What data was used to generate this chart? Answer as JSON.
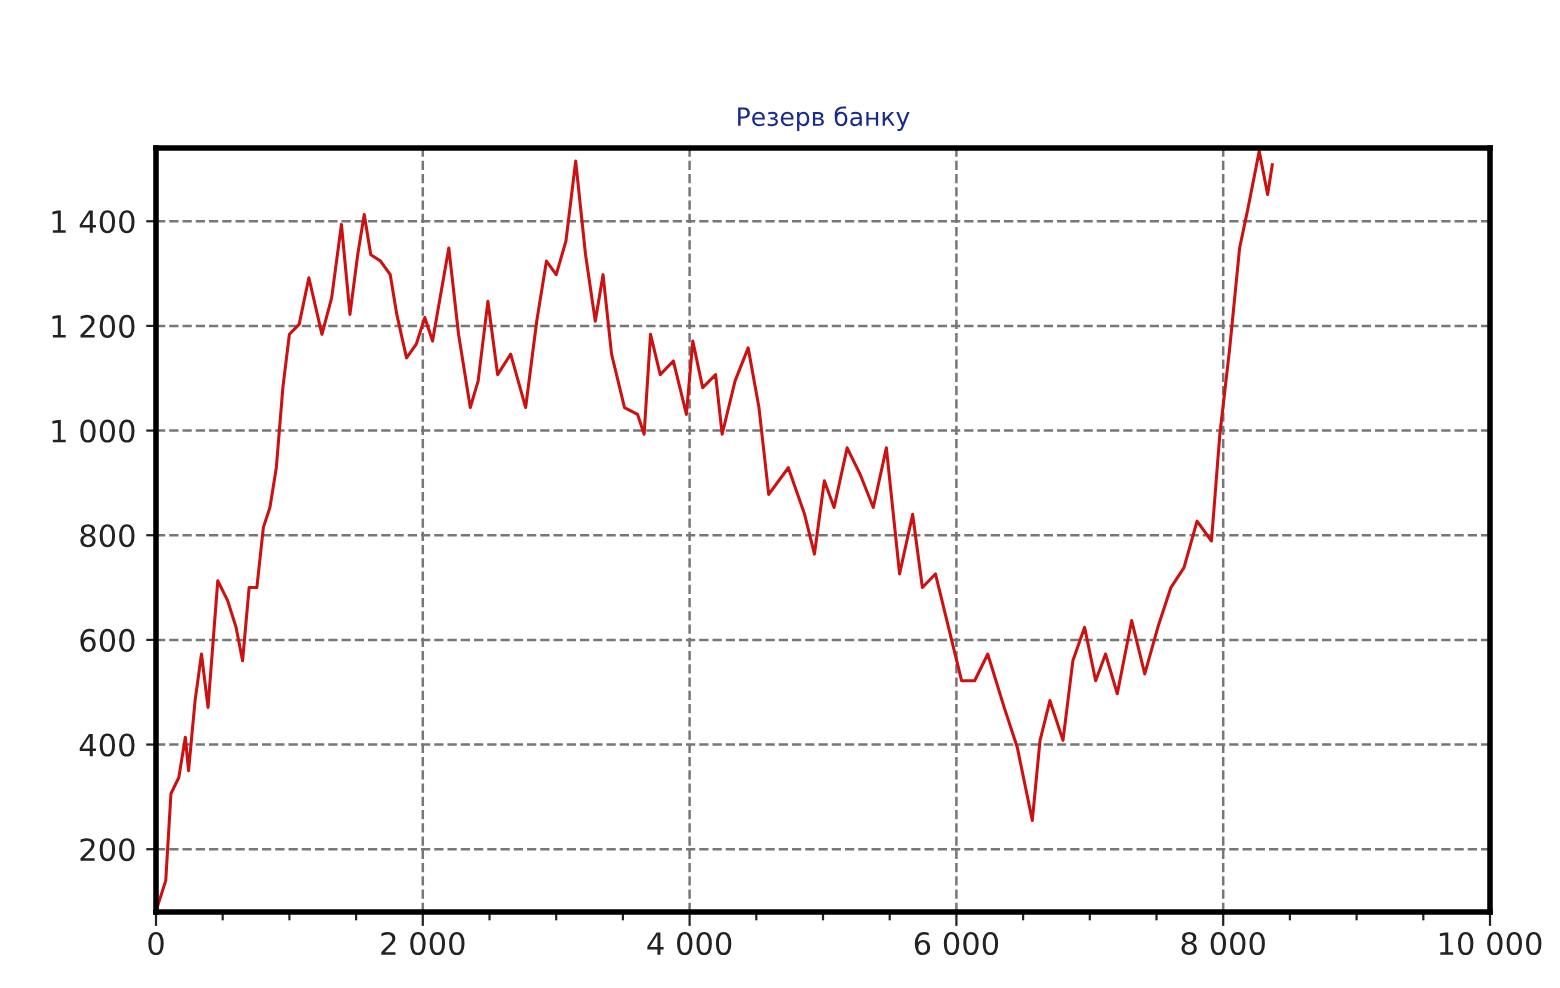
{
  "chart_data": {
    "type": "line",
    "title": "Резерв банку",
    "x": [
      10,
      73,
      112,
      171,
      220,
      244,
      293,
      341,
      390,
      463,
      537,
      600,
      649,
      698,
      756,
      805,
      854,
      902,
      951,
      1000,
      1073,
      1146,
      1244,
      1317,
      1390,
      1454,
      1512,
      1561,
      1610,
      1683,
      1756,
      1805,
      1878,
      1951,
      2015,
      2073,
      2195,
      2268,
      2356,
      2415,
      2488,
      2561,
      2659,
      2771,
      2854,
      2927,
      3000,
      3073,
      3146,
      3220,
      3293,
      3351,
      3415,
      3512,
      3610,
      3659,
      3707,
      3780,
      3878,
      3976,
      4024,
      4098,
      4195,
      4244,
      4341,
      4439,
      4520,
      4593,
      4740,
      4862,
      4936,
      5010,
      5083,
      5181,
      5279,
      5377,
      5475,
      5574,
      5672,
      5745,
      5843,
      5941,
      6039,
      6137,
      6235,
      6358,
      6456,
      6569,
      6627,
      6701,
      6799,
      6873,
      6961,
      7044,
      7118,
      7206,
      7314,
      7412,
      7510,
      7608,
      7706,
      7804,
      7912,
      7975,
      8049,
      8123,
      8186,
      8270,
      8333,
      8368
    ],
    "series": [
      {
        "color": "#cc1111",
        "values": [
          90,
          140,
          306,
          337,
          414,
          350,
          484,
          573,
          471,
          713,
          675,
          624,
          560,
          700,
          700,
          815,
          853,
          929,
          1082,
          1184,
          1203,
          1292,
          1184,
          1254,
          1394,
          1222,
          1336,
          1413,
          1336,
          1324,
          1298,
          1222,
          1139,
          1165,
          1216,
          1171,
          1349,
          1184,
          1044,
          1095,
          1247,
          1107,
          1146,
          1044,
          1209,
          1324,
          1298,
          1362,
          1515,
          1336,
          1209,
          1298,
          1146,
          1044,
          1031,
          993,
          1184,
          1107,
          1133,
          1031,
          1171,
          1082,
          1107,
          993,
          1095,
          1158,
          1044,
          878,
          929,
          840,
          764,
          904,
          853,
          967,
          916,
          853,
          967,
          726,
          840,
          700,
          726,
          624,
          522,
          522,
          573,
          471,
          395,
          255,
          408,
          484,
          408,
          560,
          624,
          522,
          573,
          497,
          637,
          535,
          624,
          700,
          738,
          827,
          789,
          993,
          1158,
          1349,
          1425,
          1534,
          1451,
          1508
        ]
      }
    ],
    "xlim": [
      0,
      10000
    ],
    "ylim": [
      80,
      1540
    ],
    "xticks": [
      {
        "value": 0,
        "label": "0"
      },
      {
        "value": 500,
        "label": null
      },
      {
        "value": 1000,
        "label": null
      },
      {
        "value": 1500,
        "label": null
      },
      {
        "value": 2000,
        "label": "2 000"
      },
      {
        "value": 2500,
        "label": null
      },
      {
        "value": 3000,
        "label": null
      },
      {
        "value": 3500,
        "label": null
      },
      {
        "value": 4000,
        "label": "4 000"
      },
      {
        "value": 4500,
        "label": null
      },
      {
        "value": 5000,
        "label": null
      },
      {
        "value": 5500,
        "label": null
      },
      {
        "value": 6000,
        "label": "6 000"
      },
      {
        "value": 6500,
        "label": null
      },
      {
        "value": 7000,
        "label": null
      },
      {
        "value": 7500,
        "label": null
      },
      {
        "value": 8000,
        "label": "8 000"
      },
      {
        "value": 8500,
        "label": null
      },
      {
        "value": 9000,
        "label": null
      },
      {
        "value": 9500,
        "label": null
      },
      {
        "value": 10000,
        "label": "10 000"
      }
    ],
    "yticks": [
      {
        "value": 200,
        "label": "200"
      },
      {
        "value": 400,
        "label": "400"
      },
      {
        "value": 600,
        "label": "600"
      },
      {
        "value": 800,
        "label": "800"
      },
      {
        "value": 1000,
        "label": "1 000"
      },
      {
        "value": 1200,
        "label": "1 200"
      },
      {
        "value": 1400,
        "label": "1 400"
      }
    ],
    "grid": true,
    "line_style": "solid",
    "marker": "none"
  }
}
